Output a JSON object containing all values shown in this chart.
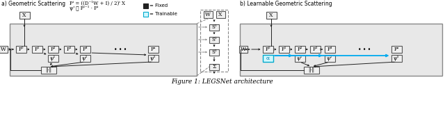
{
  "fig_width": 6.4,
  "fig_height": 1.64,
  "dpi": 100,
  "background": "#ffffff",
  "caption": "Figure 1: LEGSNet architecture",
  "title_a": "a) Geometric Scattering",
  "title_b": "b) Learnable Geometric Scattering",
  "formula1": "Pⁱ = ((D⁻¹W + I) / 2)ⁱ X",
  "formula2": "ψⁱ ≜ Pⁱ⁻¹ · Pⁱ",
  "legend_fixed": "= Fixed",
  "legend_trainable": "= Trainable",
  "box_fc": "#f0f0f0",
  "box_ec": "#555555",
  "outer_fc": "#e8e8e8",
  "outer_ec": "#888888",
  "cyan_fc": "#d0f8ff",
  "cyan_ec": "#00aacc",
  "cyan_arrow": "#00aaee",
  "dashed_color": "#888888",
  "arrow_color": "#222222",
  "p_labels_left": [
    "P⁰",
    "P¹",
    "P²",
    "P³",
    "P⁴",
    "Pⁿ"
  ],
  "psi_labels_left": [
    "ψ¹",
    "ψ²",
    "ψ³"
  ],
  "s_labels": [
    "S¹",
    "S²",
    "S³"
  ],
  "p_labels_right": [
    "P⁰",
    "P¹",
    "P²",
    "P³",
    "P⁴",
    "Pⁿ"
  ],
  "psi_labels_right": [
    "ψ¹",
    "ψ²",
    "ψ³"
  ],
  "alpha_label": "α",
  "norm_label": "‖·‖",
  "sigma_label": "Σ"
}
